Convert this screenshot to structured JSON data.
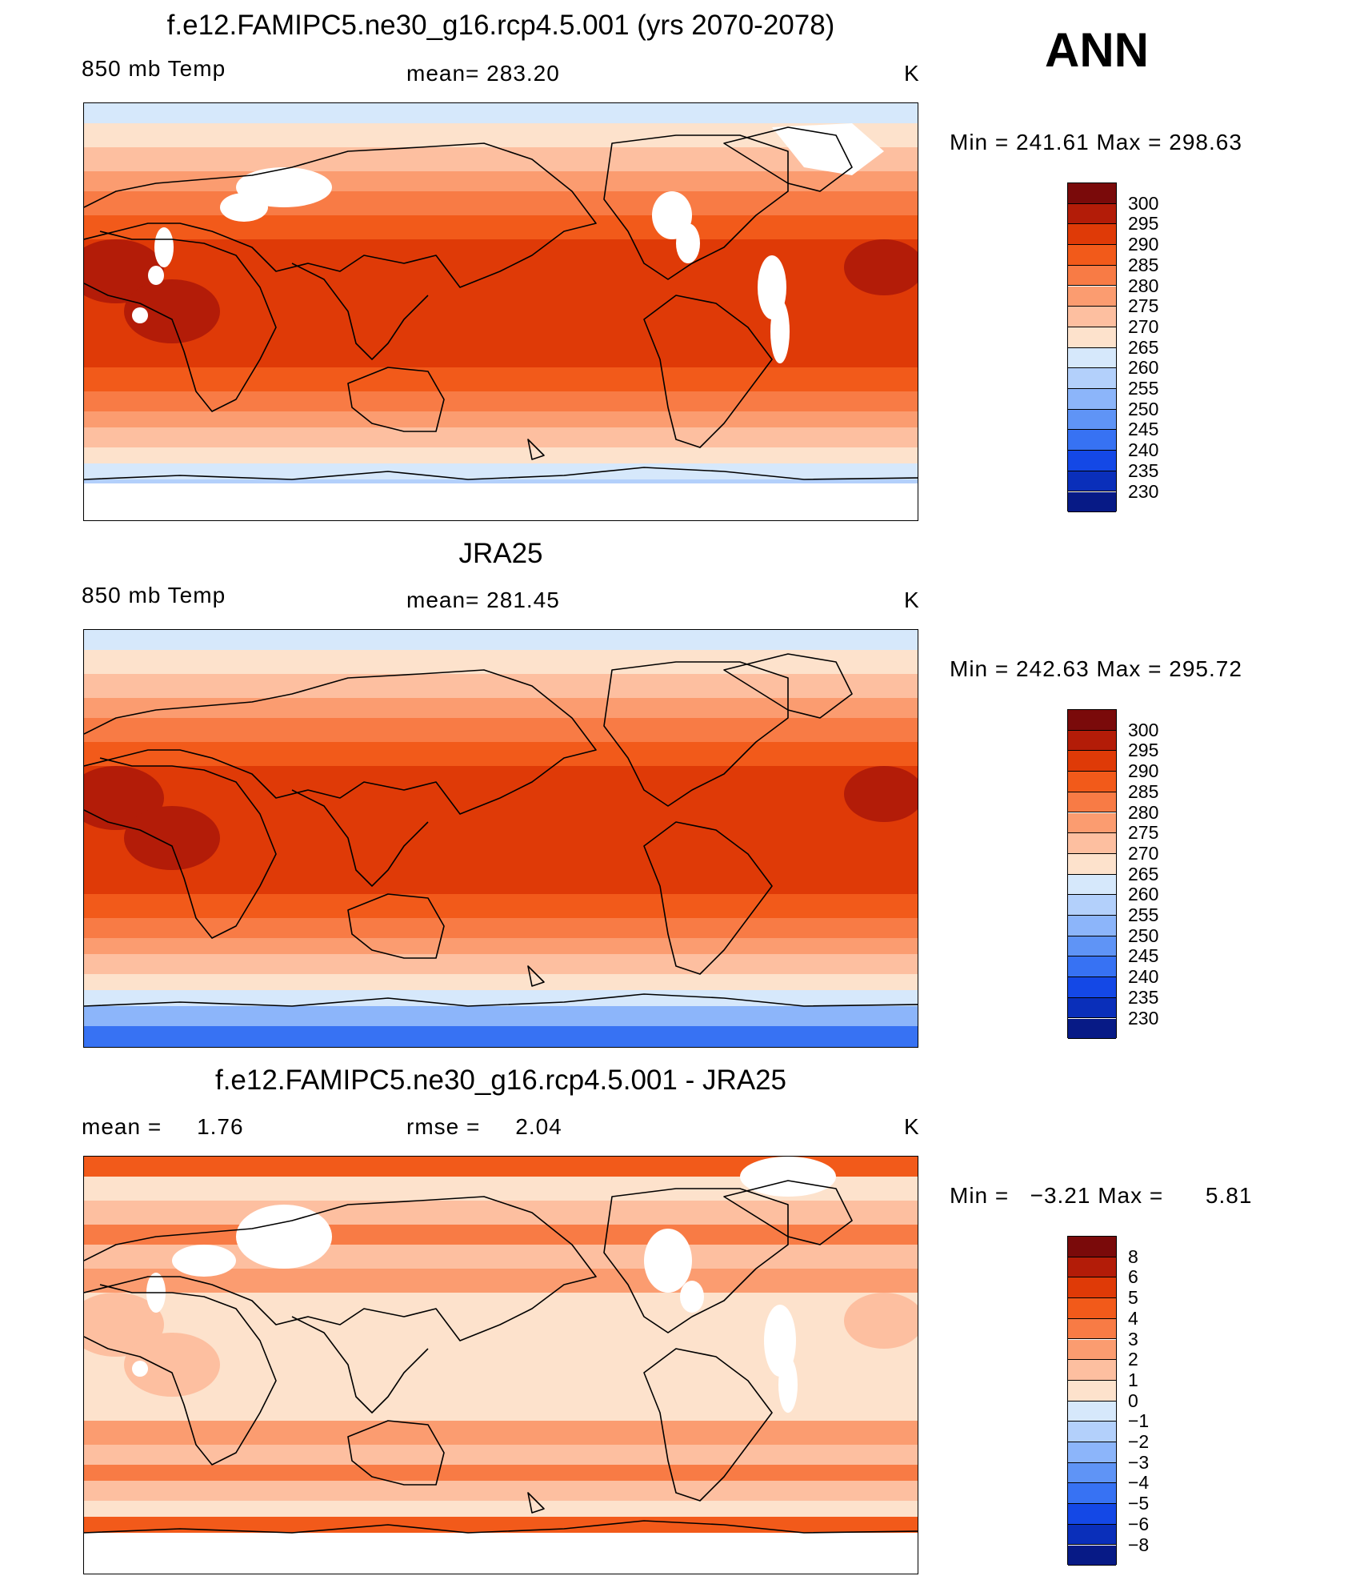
{
  "header": {
    "season": "ANN"
  },
  "panels": [
    {
      "id": "model",
      "title": "f.e12.FAMIPC5.ne30_g16.rcp4.5.001 (yrs 2070-2078)",
      "left_text": "850 mb Temp",
      "center_text": "mean= 283.20",
      "units": "K",
      "minmax": "Min = 241.61 Max = 298.63",
      "colorbar_labels": [
        "300",
        "295",
        "290",
        "285",
        "280",
        "275",
        "270",
        "265",
        "260",
        "255",
        "250",
        "245",
        "240",
        "235",
        "230"
      ],
      "colorbar_colors": [
        "#7a0a0a",
        "#b31c08",
        "#df3a07",
        "#f25a1a",
        "#f87b45",
        "#fb9c70",
        "#fdbfa0",
        "#fde2cc",
        "#d6e8fb",
        "#b3d0fb",
        "#8cb5fa",
        "#5f94f6",
        "#3772f3",
        "#1448e6",
        "#0a2fba",
        "#071a86"
      ],
      "colors": {
        "tropics": "#df3a07",
        "hot": "#b31c08",
        "warm": "#f25a1a",
        "midlat": "#f87b45",
        "mid2": "#fb9c70",
        "cool": "#fdbfa0",
        "cold": "#fde2cc",
        "polar": "#d6e8fb",
        "ice1": "#b3d0fb",
        "ice2": "#8cb5fa",
        "missing": "#ffffff"
      }
    },
    {
      "id": "obs",
      "title": "JRA25",
      "left_text": "850 mb Temp",
      "center_text": "mean= 281.45",
      "units": "K",
      "minmax": "Min = 242.63 Max = 295.72",
      "colorbar_labels": [
        "300",
        "295",
        "290",
        "285",
        "280",
        "275",
        "270",
        "265",
        "260",
        "255",
        "250",
        "245",
        "240",
        "235",
        "230"
      ],
      "colorbar_colors": [
        "#7a0a0a",
        "#b31c08",
        "#df3a07",
        "#f25a1a",
        "#f87b45",
        "#fb9c70",
        "#fdbfa0",
        "#fde2cc",
        "#d6e8fb",
        "#b3d0fb",
        "#8cb5fa",
        "#5f94f6",
        "#3772f3",
        "#1448e6",
        "#0a2fba",
        "#071a86"
      ],
      "colors": {
        "tropics": "#df3a07",
        "hot": "#b31c08",
        "warm": "#f25a1a",
        "midlat": "#f87b45",
        "mid2": "#fb9c70",
        "cool": "#fdbfa0",
        "cold": "#fde2cc",
        "polar": "#d6e8fb",
        "ice1": "#8cb5fa",
        "ice2": "#3772f3",
        "missing": "#ffffff"
      }
    },
    {
      "id": "diff",
      "title": "f.e12.FAMIPC5.ne30_g16.rcp4.5.001 - JRA25",
      "left_text": "mean =     1.76",
      "center_text": "rmse =     2.04",
      "units": "K",
      "minmax": "Min =   −3.21 Max =      5.81",
      "colorbar_labels": [
        "8",
        "6",
        "5",
        "4",
        "3",
        "2",
        "1",
        "0",
        "−1",
        "−2",
        "−3",
        "−4",
        "−5",
        "−6",
        "−8"
      ],
      "colorbar_colors": [
        "#7a0a0a",
        "#b31c08",
        "#df3a07",
        "#f25a1a",
        "#f87b45",
        "#fb9c70",
        "#fdbfa0",
        "#fde2cc",
        "#d6e8fb",
        "#b3d0fb",
        "#8cb5fa",
        "#5f94f6",
        "#3772f3",
        "#1448e6",
        "#0a2fba",
        "#071a86"
      ],
      "colors": {
        "tropics": "#fde2cc",
        "hot": "#fdbfa0",
        "warm": "#fb9c70",
        "midlat": "#fdbfa0",
        "mid2": "#f87b45",
        "cool": "#fdbfa0",
        "cold": "#fde2cc",
        "polar": "#f25a1a",
        "ice1": "#ffffff",
        "ice2": "#ffffff",
        "missing": "#ffffff"
      }
    }
  ]
}
